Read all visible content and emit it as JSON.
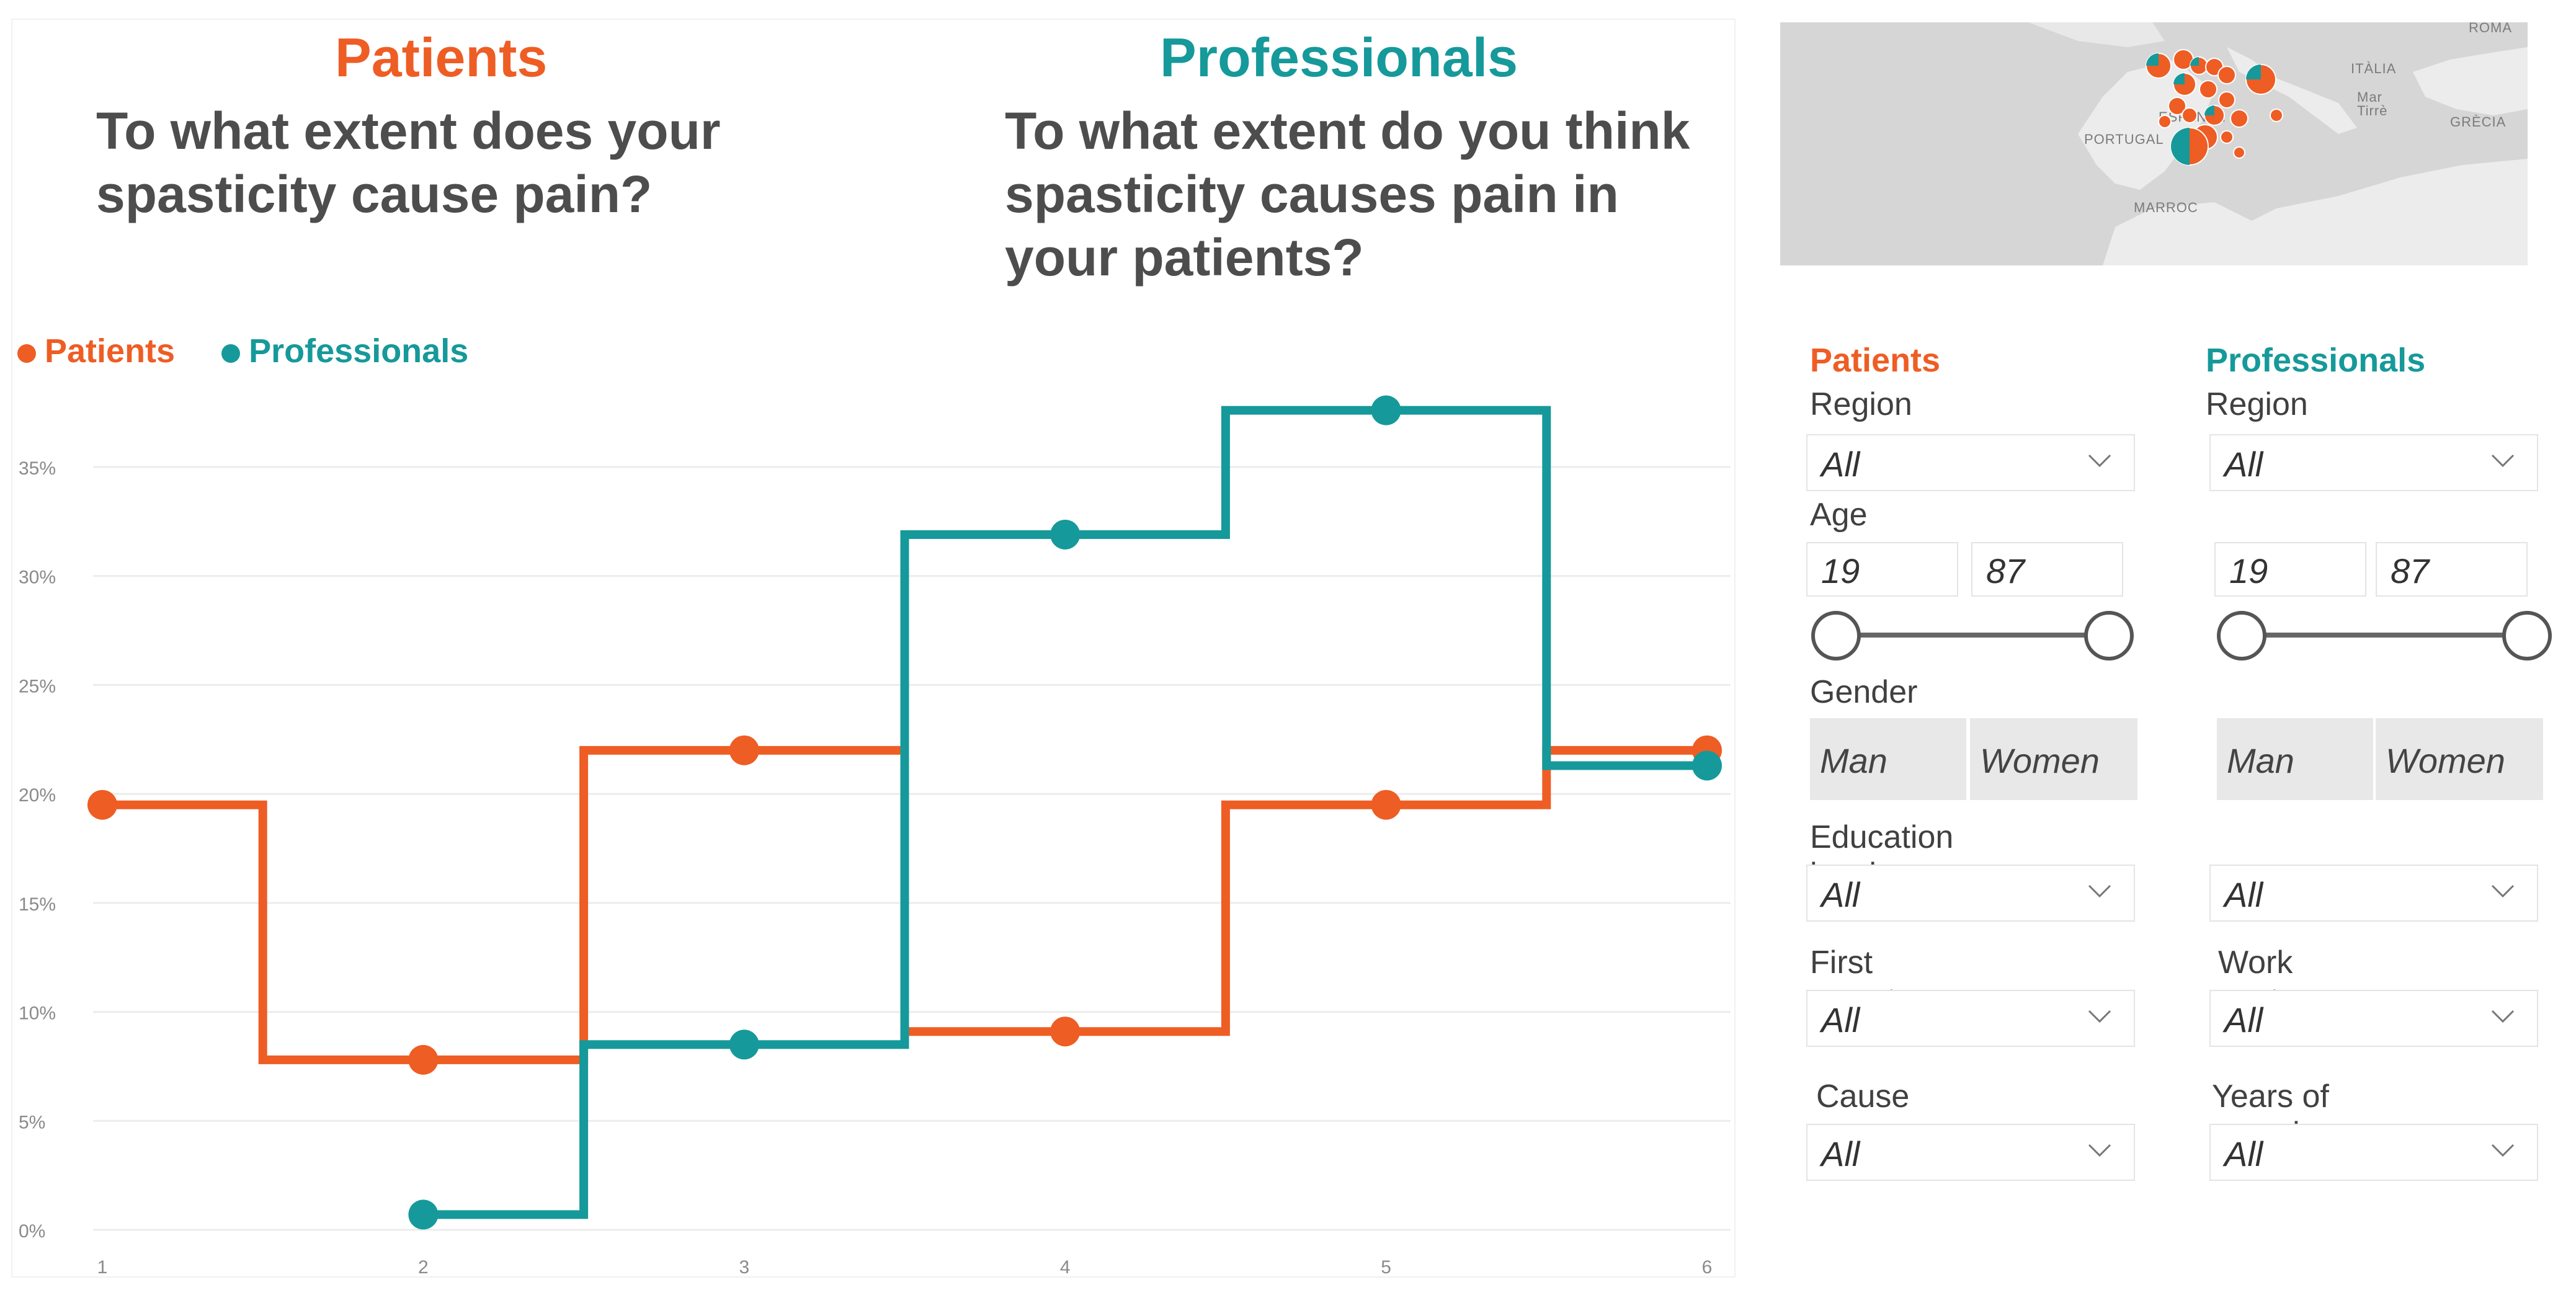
{
  "headings": {
    "patients": "Patients",
    "professionals": "Professionals",
    "patients_question": "To what extent does your spasticity cause pain?",
    "professionals_question": "To what extent do you think spasticity causes pain in your patients?"
  },
  "legend": [
    {
      "label": "Patients",
      "color": "#ee5d24"
    },
    {
      "label": "Professionals",
      "color": "#16999a"
    }
  ],
  "chart_data": {
    "type": "line",
    "x": [
      1,
      2,
      3,
      4,
      5,
      6
    ],
    "series": [
      {
        "name": "Patients",
        "color": "#ee5d24",
        "values": [
          19.5,
          7.8,
          22.0,
          9.1,
          19.5,
          22.0
        ]
      },
      {
        "name": "Professionals",
        "color": "#16999a",
        "values": [
          null,
          0.7,
          8.5,
          31.9,
          37.6,
          21.3
        ]
      }
    ],
    "ylim": [
      0,
      37.6
    ],
    "yticks": [
      "0%",
      "5%",
      "10%",
      "15%",
      "20%",
      "25%",
      "30%",
      "35%"
    ],
    "xticks": [
      "1",
      "2",
      "3",
      "4",
      "5",
      "6"
    ],
    "step": "mid",
    "grid": true,
    "legend_position": "top-left"
  },
  "map": {
    "labels": [
      "ROMA",
      "ITÀLIA",
      "Mar Tirrè",
      "GRÈCIA",
      "PORTUGAL",
      "ESPANYA",
      "MARROC"
    ]
  },
  "filters": {
    "patients": {
      "title": "Patients",
      "region_label": "Region",
      "region_value": "All",
      "age_label": "Age",
      "age_min": "19",
      "age_max": "87",
      "gender_label": "Gender",
      "gender_man": "Man",
      "gender_women": "Women",
      "education_label": "Education level",
      "education_value": "All",
      "symptom_label": "First symptom",
      "symptom_value": "All",
      "cause_label": "Cause",
      "cause_value": "All"
    },
    "professionals": {
      "title": "Professionals",
      "region_label": "Region",
      "region_value": "All",
      "age_min": "19",
      "age_max": "87",
      "gender_man": "Man",
      "gender_women": "Women",
      "education_value": "All",
      "workcentre_label": "Work centre",
      "workcentre_value": "All",
      "experience_label": "Years of experience",
      "experience_value": "All"
    }
  },
  "colors": {
    "patients": "#ee5d24",
    "professionals": "#16999a"
  }
}
